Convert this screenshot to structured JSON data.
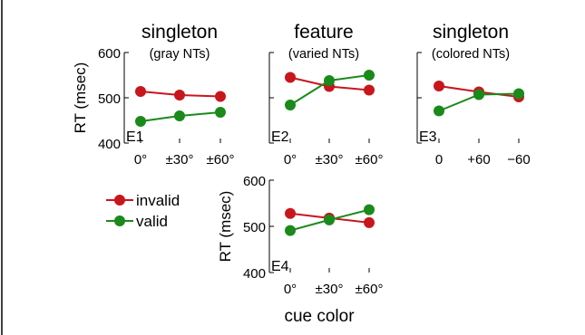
{
  "chart_data": [
    {
      "type": "line",
      "title": "singleton",
      "subtitle": "(gray NTs)",
      "ylabel": "RT (msec)",
      "experiment": "E1",
      "ylim": [
        400,
        600
      ],
      "yticks": [
        "400",
        "500",
        "600"
      ],
      "categories": [
        "0°",
        "±30°",
        "±60°"
      ],
      "series": [
        {
          "name": "invalid",
          "color": "#c8161d",
          "values": [
            514,
            506,
            503
          ]
        },
        {
          "name": "valid",
          "color": "#1a8a1a",
          "values": [
            448,
            460,
            468
          ]
        }
      ]
    },
    {
      "type": "line",
      "title": "feature",
      "subtitle": "(varied NTs)",
      "experiment": "E2",
      "ylim": [
        400,
        600
      ],
      "categories": [
        "0°",
        "±30°",
        "±60°"
      ],
      "series": [
        {
          "name": "invalid",
          "color": "#c8161d",
          "values": [
            545,
            525,
            517
          ]
        },
        {
          "name": "valid",
          "color": "#1a8a1a",
          "values": [
            484,
            538,
            550
          ]
        }
      ]
    },
    {
      "type": "line",
      "title": "singleton",
      "subtitle": "(colored NTs)",
      "experiment": "E3",
      "ylim": [
        400,
        600
      ],
      "categories": [
        "0",
        "+60",
        "−60"
      ],
      "series": [
        {
          "name": "invalid",
          "color": "#c8161d",
          "values": [
            526,
            513,
            502
          ]
        },
        {
          "name": "valid",
          "color": "#1a8a1a",
          "values": [
            471,
            507,
            509
          ]
        }
      ]
    },
    {
      "type": "line",
      "ylabel": "RT (msec)",
      "xlabel": "cue color",
      "experiment": "E4",
      "ylim": [
        400,
        600
      ],
      "yticks": [
        "400",
        "500",
        "600"
      ],
      "categories": [
        "0°",
        "±30°",
        "±60°"
      ],
      "series": [
        {
          "name": "invalid",
          "color": "#c8161d",
          "values": [
            528,
            518,
            508
          ]
        },
        {
          "name": "valid",
          "color": "#1a8a1a",
          "values": [
            491,
            514,
            536
          ]
        }
      ]
    }
  ],
  "legend": [
    {
      "label": "invalid",
      "color": "#c8161d"
    },
    {
      "label": "valid",
      "color": "#1a8a1a"
    }
  ]
}
